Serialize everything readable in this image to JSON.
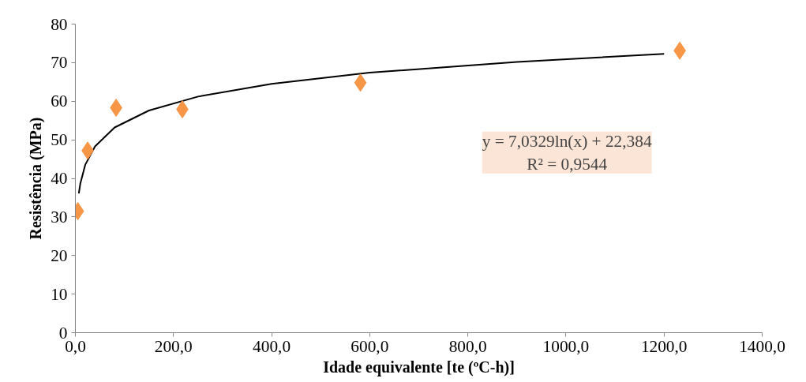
{
  "chart_data": {
    "type": "scatter",
    "xlabel": "Idade equivalente [te (ºC-h)]",
    "ylabel": "Resistência (MPa)",
    "grid": false,
    "xlim": [
      0,
      1400
    ],
    "xticks": [
      {
        "value": 0,
        "label": "0,0"
      },
      {
        "value": 200,
        "label": "200,0"
      },
      {
        "value": 400,
        "label": "400,0"
      },
      {
        "value": 600,
        "label": "600,0"
      },
      {
        "value": 800,
        "label": "800,0"
      },
      {
        "value": 1000,
        "label": "1000,0"
      },
      {
        "value": 1200,
        "label": "1200,0"
      },
      {
        "value": 1400,
        "label": "1400,0"
      }
    ],
    "ylim": [
      0,
      80
    ],
    "yticks": [
      0,
      10,
      20,
      30,
      40,
      50,
      60,
      70,
      80
    ],
    "series": [
      {
        "marker": "diamond",
        "color": "#f79646",
        "x": [
          5,
          25,
          83,
          218,
          581,
          1232
        ],
        "values": [
          31.5,
          47.2,
          58.3,
          57.9,
          64.8,
          73.1
        ]
      },
      {
        "type": "line",
        "marker": "none",
        "color": "#000000",
        "x": [
          7,
          10,
          20,
          40,
          80,
          150,
          250,
          400,
          600,
          900,
          1200
        ],
        "values": [
          36.1,
          38.6,
          43.5,
          48.3,
          53.2,
          57.6,
          61.2,
          64.5,
          67.4,
          70.2,
          72.3
        ]
      }
    ],
    "annotations": [
      "y = 7,0329ln(x) + 22,384\nR² = 0,9544"
    ]
  }
}
